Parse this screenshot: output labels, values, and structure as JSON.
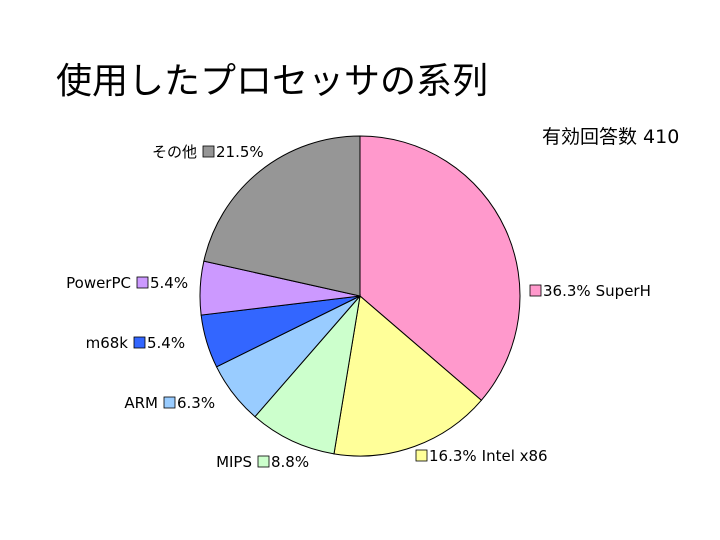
{
  "title": "使用したプロセッサの系列",
  "note": "有効回答数 410",
  "chart_data": {
    "type": "pie",
    "title": "使用したプロセッサの系列",
    "slices": [
      {
        "label": "SuperH",
        "value": 36.3,
        "display": "36.3%",
        "color": "#ff99cc"
      },
      {
        "label": "Intel x86",
        "value": 16.3,
        "display": "16.3%",
        "color": "#ffff99"
      },
      {
        "label": "MIPS",
        "value": 8.8,
        "display": "8.8%",
        "color": "#ccffcc"
      },
      {
        "label": "ARM",
        "value": 6.3,
        "display": "6.3%",
        "color": "#99ccff"
      },
      {
        "label": "m68k",
        "value": 5.4,
        "display": "5.4%",
        "color": "#3366ff"
      },
      {
        "label": "PowerPC",
        "value": 5.4,
        "display": "5.4%",
        "color": "#cc99ff"
      },
      {
        "label": "その他",
        "value": 21.5,
        "display": "21.5%",
        "color": "#969696"
      }
    ],
    "start": "top",
    "direction": "clockwise"
  }
}
